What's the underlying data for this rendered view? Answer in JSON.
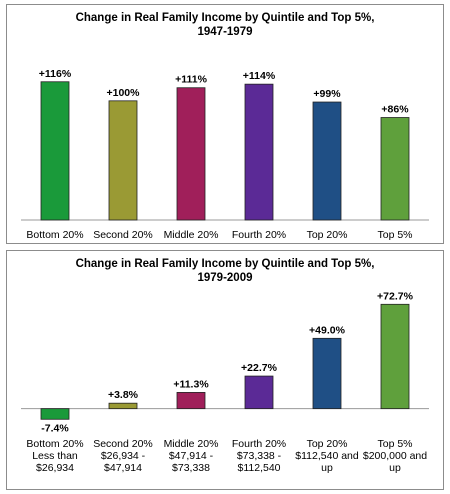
{
  "chart_data": [
    {
      "type": "bar",
      "title": [
        "Change in Real Family Income by Quintile and Top 5%,",
        "1947-1979"
      ],
      "categories": [
        [
          "Bottom 20%"
        ],
        [
          "Second 20%"
        ],
        [
          "Middle 20%"
        ],
        [
          "Fourth 20%"
        ],
        [
          "Top 20%"
        ],
        [
          "Top 5%"
        ]
      ],
      "values": [
        116,
        100,
        111,
        114,
        99,
        86
      ],
      "value_labels": [
        "+116%",
        "+100%",
        "+111%",
        "+114%",
        "+99%",
        "+86%"
      ],
      "colors": [
        "#1a9a3a",
        "#9a9a34",
        "#a01f5a",
        "#5b2a96",
        "#1f4f85",
        "#5fa03c"
      ],
      "ylim": [
        0,
        120
      ],
      "grid": false,
      "legend": "none"
    },
    {
      "type": "bar",
      "title": [
        "Change in Real Family Income by Quintile and Top 5%,",
        "1979-2009"
      ],
      "categories": [
        [
          "Bottom 20%",
          "Less than",
          "$26,934"
        ],
        [
          "Second 20%",
          "$26,934 -",
          "$47,914"
        ],
        [
          "Middle 20%",
          "$47,914 -",
          "$73,338"
        ],
        [
          "Fourth 20%",
          "$73,338 -",
          "$112,540"
        ],
        [
          "Top 20%",
          "$112,540 and",
          "up"
        ],
        [
          "Top 5%",
          "$200,000 and",
          "up"
        ]
      ],
      "values": [
        -7.4,
        3.8,
        11.3,
        22.7,
        49.0,
        72.7
      ],
      "value_labels": [
        "-7.4%",
        "+3.8%",
        "+11.3%",
        "+22.7%",
        "+49.0%",
        "+72.7%"
      ],
      "colors": [
        "#1a9a3a",
        "#9a9a34",
        "#a01f5a",
        "#5b2a96",
        "#1f4f85",
        "#5fa03c"
      ],
      "ylim": [
        -10,
        75
      ],
      "grid": false,
      "legend": "none"
    }
  ]
}
